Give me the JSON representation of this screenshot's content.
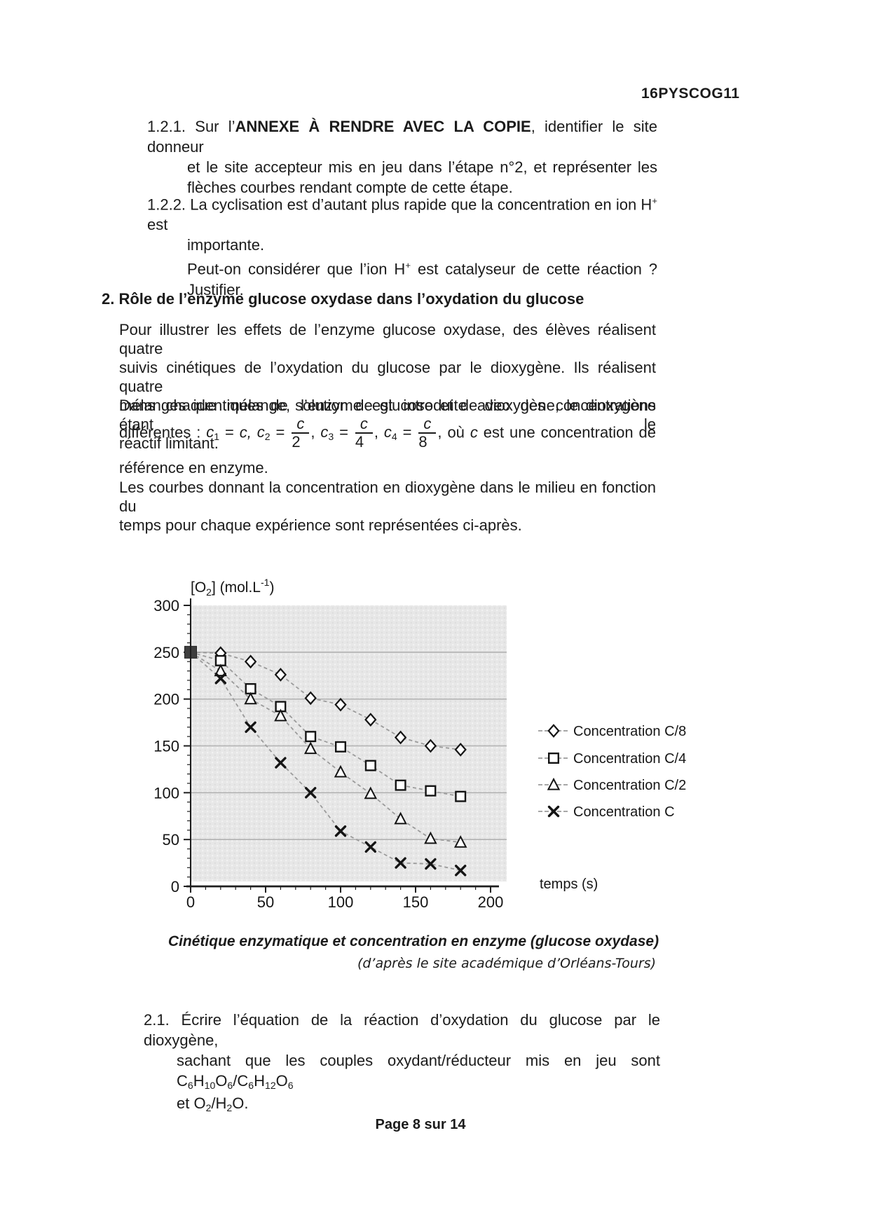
{
  "header": {
    "code": "16PYSCOG11"
  },
  "q121": {
    "num": "1.2.1.",
    "l1_pre": "Sur l’",
    "l1_bold": "ANNEXE À RENDRE AVEC LA COPIE",
    "l1_post": ", identifier le site donneur",
    "l2": "et le site accepteur mis en jeu dans l’étape n°2, et représenter les",
    "l3": "flèches courbes rendant compte de cette étape."
  },
  "q122": {
    "num": "1.2.2.",
    "l1_pre": "La cyclisation est d’autant plus rapide que la concentration en ion H",
    "l1_sup": "+",
    "l1_post": " est",
    "l2": "importante.",
    "l3_pre": "Peut-on considérer que l’ion H",
    "l3_sup": "+",
    "l3_post": " est catalyseur de cette réaction ?",
    "l4": "Justifier."
  },
  "s2": {
    "num": "2.",
    "title": "Rôle de l’enzyme glucose oxydase dans l’oxydation du glucose"
  },
  "para1": [
    "Pour illustrer les effets de l’enzyme glucose oxydase, des élèves réalisent quatre",
    "suivis cinétiques de l’oxydation du glucose par le dioxygène. Ils réalisent quatre",
    "mélanges identiques de solution de glucose et de dioxygène, le dioxygène étant le",
    "réactif limitant."
  ],
  "para2": "Dans chaque mélange, l’enzyme est introduite avec des concentrations",
  "fracline": {
    "pre": "différentes :",
    "c1": "c",
    "c1sub": "1",
    "eq1": "=",
    "v1": "c,",
    "c2": "c",
    "c2sub": "2",
    "eq2": "=",
    "f2num": "c",
    "f2den": "2",
    "sep2": ",",
    "c3": "c",
    "c3sub": "3",
    "eq3": "=",
    "f3num": "c",
    "f3den": "4",
    "sep3": ",",
    "c4": "c",
    "c4sub": "4",
    "eq4": "=",
    "f4num": "c",
    "f4den": "8",
    "sep4": ",",
    "post_pre": "où",
    "post_c": "c",
    "post_rest": "est une concentration de"
  },
  "para3": "référence en enzyme.",
  "para4": [
    "Les courbes donnant la concentration en dioxygène dans le milieu en fonction du",
    "temps pour chaque expérience sont représentées ci-après."
  ],
  "chart_data": {
    "type": "line",
    "title": "",
    "ylabel_parts": {
      "pre": "[O",
      "sub": "2",
      "mid": "] (mol.L",
      "sup": "-1",
      "post": ")"
    },
    "xlabel": "temps (s)",
    "x": [
      0,
      20,
      40,
      60,
      80,
      100,
      120,
      140,
      160,
      180
    ],
    "series": [
      {
        "name": "Concentration C/8",
        "marker": "diamond",
        "values": [
          250,
          249,
          240,
          226,
          201,
          194,
          178,
          159,
          150,
          146
        ]
      },
      {
        "name": "Concentration C/4",
        "marker": "square",
        "values": [
          250,
          241,
          211,
          192,
          160,
          149,
          129,
          108,
          102,
          96
        ]
      },
      {
        "name": "Concentration C/2",
        "marker": "triangle",
        "values": [
          250,
          230,
          200,
          182,
          147,
          122,
          99,
          72,
          51,
          47
        ]
      },
      {
        "name": "Concentration C",
        "marker": "x",
        "values": [
          250,
          222,
          170,
          132,
          100,
          59,
          42,
          25,
          24,
          17
        ]
      }
    ],
    "xlim": [
      0,
      200
    ],
    "ylim": [
      0,
      300
    ],
    "xticks": [
      0,
      50,
      100,
      150,
      200
    ],
    "yticks": [
      0,
      50,
      100,
      150,
      200,
      250,
      300
    ],
    "minor_step_x": 10,
    "minor_step_y": 10,
    "grid": true,
    "legend_position": "right",
    "origin_point": {
      "x": 0,
      "y": 250
    },
    "plot_bg": "#e7e7e7",
    "grid_color": "#b2b2b2",
    "line_color": "#9b9b9b",
    "marker_color": "#141414",
    "axis_color": "#1e1e1e"
  },
  "caption": {
    "title": "Cinétique enzymatique et concentration en enzyme (glucose oxydase)",
    "source": "(d’après le site académique d’Orléans-Tours)"
  },
  "q21": {
    "num": "2.1.",
    "l1": "Écrire l’équation de la réaction d’oxydation du glucose par le dioxygène,",
    "l2_pre": "sachant que les couples oxydant/réducteur mis en jeu sont",
    "formula1": {
      "a": "C",
      "as": "6",
      "b": "H",
      "bs": "10",
      "c": "O",
      "cs": "6",
      "d": "/C",
      "ds": "6",
      "e": "H",
      "es": "12",
      "f": "O",
      "fs": "6"
    },
    "l3_pre": "et O",
    "l3_s1": "2",
    "l3_mid": "/H",
    "l3_s2": "2",
    "l3_post": "O."
  },
  "footer": {
    "text": "Page 8 sur 14"
  }
}
